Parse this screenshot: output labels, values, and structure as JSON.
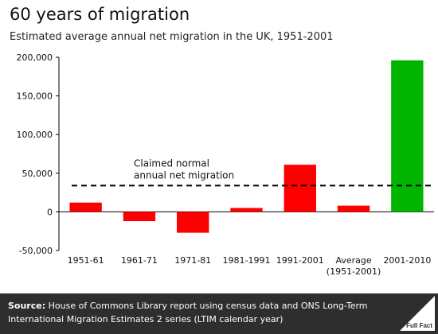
{
  "title": "60 years of migration",
  "subtitle": "Estimated average annual net migration in the UK, 1951-2001",
  "chart_data": {
    "type": "bar",
    "categories": [
      "1951-61",
      "1961-71",
      "1971-81",
      "1981-1991",
      "1991-2001",
      "Average\n(1951-2001)",
      "2001-2010"
    ],
    "values": [
      12000,
      -12000,
      -27000,
      5000,
      61000,
      8000,
      196000
    ],
    "colors": [
      "#ff0000",
      "#ff0000",
      "#ff0000",
      "#ff0000",
      "#ff0000",
      "#ff0000",
      "#00b400"
    ],
    "ylim": [
      -50000,
      200000
    ],
    "yticks": [
      -50000,
      0,
      50000,
      100000,
      150000,
      200000
    ],
    "ytick_labels": [
      "-50,000",
      "0",
      "50,000",
      "100,000",
      "150,000",
      "200,000"
    ],
    "grid": false,
    "reference_line": {
      "value": 34000,
      "style": "dashed",
      "color": "#000000",
      "label_lines": [
        "Claimed normal",
        "annual net migration"
      ]
    }
  },
  "footer": {
    "source_label": "Source:",
    "source_text": " House of Commons Library report using census data and ONS Long-Term International Migration Estimates 2 series (LTIM calendar year)"
  },
  "logo": {
    "text": "Full Fact",
    "icon": "full-fact-logo-icon"
  }
}
